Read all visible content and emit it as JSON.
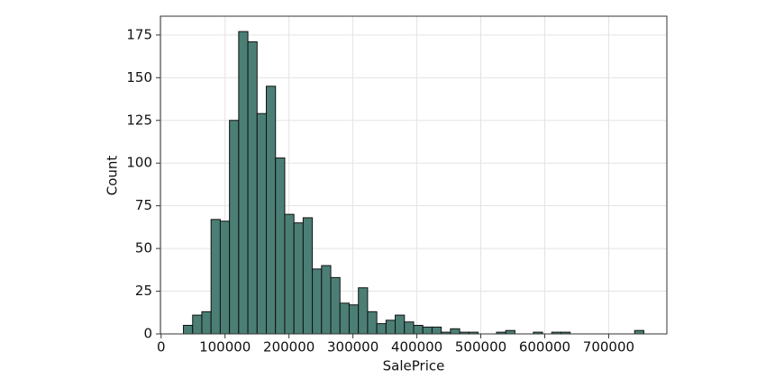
{
  "chart_data": {
    "type": "histogram",
    "x_label": "SalePrice",
    "y_label": "Count",
    "bins": [
      34900,
      49302,
      63704,
      78106,
      92508,
      106910,
      121312,
      135714,
      150116,
      164518,
      178920,
      193322,
      207724,
      222126,
      236528,
      250930,
      265332,
      279734,
      294136,
      308538,
      322940,
      337342,
      351744,
      366146,
      380548,
      394950,
      409352,
      423754,
      438156,
      452558,
      466960,
      481362,
      495764,
      510166,
      524568,
      538970,
      553372,
      567774,
      582176,
      596578,
      610980,
      625382,
      639784,
      654186,
      668588,
      682990,
      697392,
      711794,
      726196,
      740598,
      755000
    ],
    "values": [
      5,
      11,
      13,
      67,
      66,
      125,
      177,
      171,
      129,
      145,
      103,
      70,
      65,
      68,
      38,
      40,
      33,
      18,
      17,
      27,
      13,
      6,
      8,
      11,
      7,
      5,
      4,
      4,
      1,
      3,
      1,
      1,
      0,
      0,
      1,
      2,
      0,
      0,
      1,
      0,
      1,
      1,
      0,
      0,
      0,
      0,
      0,
      0,
      0,
      2
    ],
    "color": "#4b7f75",
    "xlim": [
      -1105,
      791005
    ],
    "ylim": [
      0,
      186
    ],
    "xticks": [
      0,
      100000,
      200000,
      300000,
      400000,
      500000,
      600000,
      700000
    ],
    "yticks": [
      0,
      25,
      50,
      75,
      100,
      125,
      150,
      175
    ],
    "grid": true
  }
}
